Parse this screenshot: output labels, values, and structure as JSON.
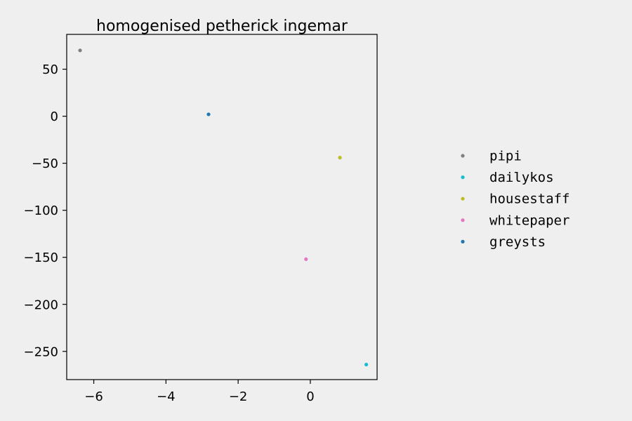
{
  "chart_data": {
    "type": "scatter",
    "title": "homogenised petherick ingemar",
    "xlabel": "",
    "ylabel": "",
    "xlim": [
      -6.75,
      1.85
    ],
    "ylim": [
      -280,
      87
    ],
    "x_ticks": [
      -6,
      -4,
      -2,
      0
    ],
    "x_tick_labels": [
      "−6",
      "−4",
      "−2",
      "0"
    ],
    "y_ticks": [
      50,
      0,
      -50,
      -100,
      -150,
      -200,
      -250
    ],
    "y_tick_labels": [
      "50",
      "0",
      "−50",
      "−100",
      "−150",
      "−200",
      "−250"
    ],
    "grid": false,
    "legend_placement": "outside-right",
    "series": [
      {
        "name": "pipi",
        "color": "#7f7f7f",
        "x": [
          -6.38
        ],
        "y": [
          70
        ]
      },
      {
        "name": "dailykos",
        "color": "#17becf",
        "x": [
          1.55
        ],
        "y": [
          -264
        ]
      },
      {
        "name": "housestaff",
        "color": "#bcbd22",
        "x": [
          0.82
        ],
        "y": [
          -44
        ]
      },
      {
        "name": "whitepaper",
        "color": "#e377c2",
        "x": [
          -0.12
        ],
        "y": [
          -152
        ]
      },
      {
        "name": "greysts",
        "color": "#1f77b4",
        "x": [
          -2.82
        ],
        "y": [
          2
        ]
      }
    ]
  }
}
